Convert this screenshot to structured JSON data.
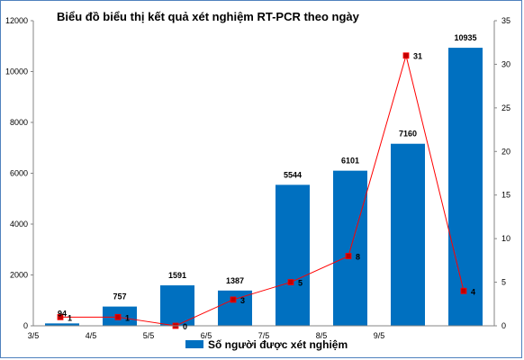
{
  "chart_data": {
    "type": "bar+line",
    "title": "Biểu đồ biểu thị kết quả xét nghiệm RT-PCR theo ngày",
    "categories": [
      "3/5",
      "4/5",
      "5/5",
      "6/5",
      "7/5",
      "8/5",
      "9/5",
      ""
    ],
    "series": [
      {
        "name": "Số người được xét nghiệm",
        "type": "bar",
        "axis": "left",
        "color": "#0070c0",
        "values": [
          94,
          757,
          1591,
          1387,
          5544,
          6101,
          7160,
          10935
        ]
      },
      {
        "type": "line",
        "axis": "right",
        "color": "#ff0000",
        "values": [
          1,
          1,
          0,
          3,
          5,
          8,
          31,
          4
        ]
      }
    ],
    "y_left": {
      "ylim": [
        0,
        12000
      ],
      "ticks": [
        "0",
        "2000",
        "4000",
        "6000",
        "8000",
        "10000",
        "12000"
      ]
    },
    "y_right": {
      "ylim": [
        0,
        35
      ],
      "ticks": [
        "0",
        "5",
        "10",
        "15",
        "20",
        "25",
        "30",
        "35"
      ]
    },
    "grid": false,
    "legend_position": "bottom"
  }
}
